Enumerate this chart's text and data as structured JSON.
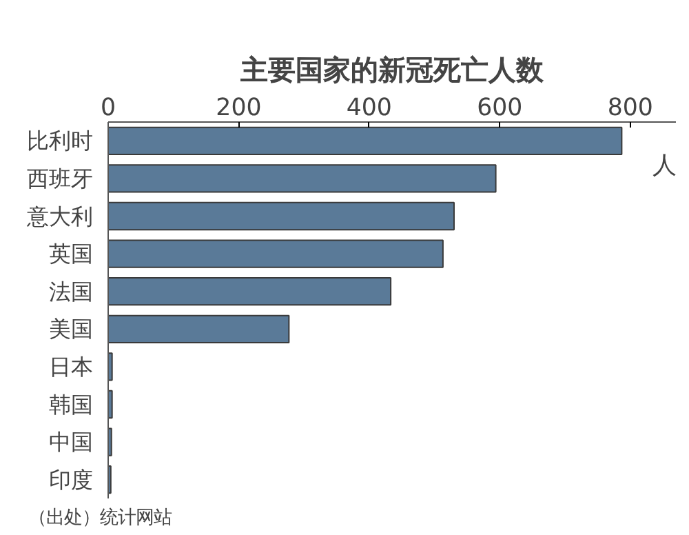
{
  "chart_data": {
    "type": "bar",
    "orientation": "horizontal",
    "title": "主要国家的新冠死亡人数",
    "xlabel": "人",
    "categories": [
      "比利时",
      "西班牙",
      "意大利",
      "英国",
      "法国",
      "美国",
      "日本",
      "韩国",
      "中国",
      "印度"
    ],
    "values": [
      787,
      594,
      530,
      513,
      433,
      277,
      6,
      6,
      5,
      4
    ],
    "color": "#5a7a98",
    "xlim": [
      0,
      870
    ],
    "xticks": [
      0,
      200,
      400,
      600,
      800
    ],
    "grid": false,
    "annotations": [
      "（出处）统计网站"
    ]
  }
}
